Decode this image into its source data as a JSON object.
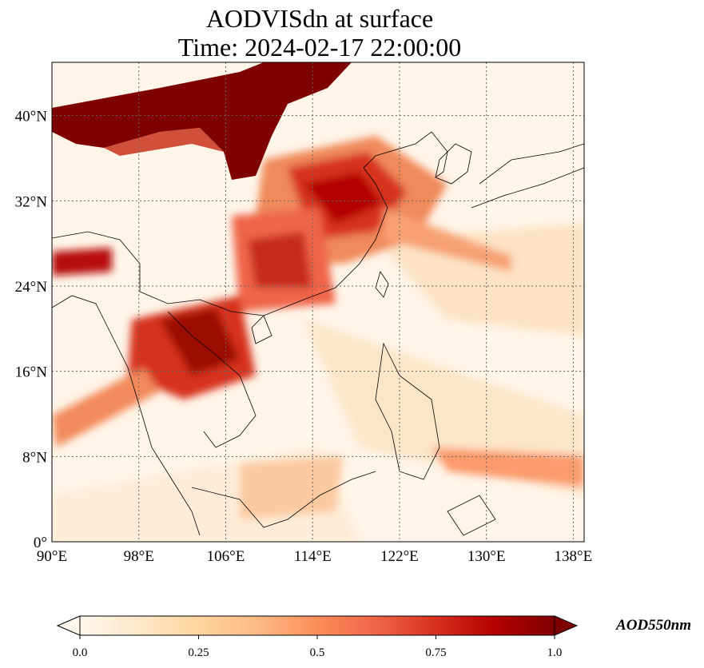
{
  "title": {
    "line1": "AODVISdn at surface",
    "line2": "Time: 2024-02-17 22:00:00"
  },
  "map": {
    "projection": "PlateCarree",
    "lon_range": [
      90,
      139
    ],
    "lat_range": [
      0,
      45
    ],
    "gridlines": "dotted",
    "lon_ticks": [
      {
        "value": 90,
        "label": "90°E"
      },
      {
        "value": 98,
        "label": "98°E"
      },
      {
        "value": 106,
        "label": "106°E"
      },
      {
        "value": 114,
        "label": "114°E"
      },
      {
        "value": 122,
        "label": "122°E"
      },
      {
        "value": 130,
        "label": "130°E"
      },
      {
        "value": 138,
        "label": "138°E"
      }
    ],
    "lat_ticks": [
      {
        "value": 0,
        "label": "0°"
      },
      {
        "value": 8,
        "label": "8°N"
      },
      {
        "value": 16,
        "label": "16°N"
      },
      {
        "value": 24,
        "label": "24°N"
      },
      {
        "value": 32,
        "label": "32°N"
      },
      {
        "value": 40,
        "label": "40°N"
      }
    ]
  },
  "colorbar": {
    "label": "AOD550nm",
    "cmap": "OrRd",
    "range": [
      0.0,
      1.0
    ],
    "extend": "both",
    "ticks": [
      {
        "value": 0.0,
        "label": "0.0"
      },
      {
        "value": 0.25,
        "label": "0.25"
      },
      {
        "value": 0.5,
        "label": "0.5"
      },
      {
        "value": 0.75,
        "label": "0.75"
      },
      {
        "value": 1.0,
        "label": "1.0"
      }
    ],
    "stops": [
      "#fff7ec",
      "#fee8c8",
      "#fdd49e",
      "#fdbb84",
      "#fc8d59",
      "#ef6548",
      "#d7301f",
      "#b30000",
      "#7f0000"
    ]
  }
}
